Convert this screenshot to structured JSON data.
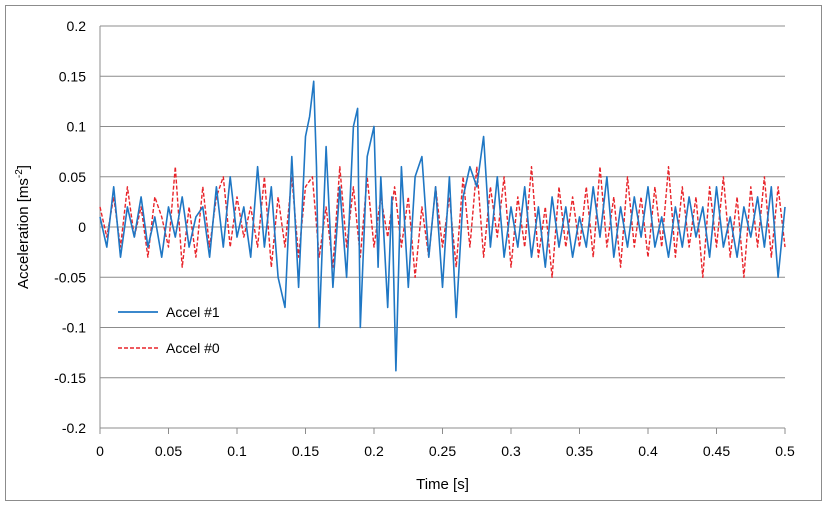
{
  "chart_data": {
    "type": "line",
    "title": "",
    "xlabel": "Time [s]",
    "ylabel_main": "Acceleration [ms",
    "ylabel_sup": "-2",
    "ylabel_close": "]",
    "xlim": [
      0,
      0.5
    ],
    "ylim": [
      -0.2,
      0.2
    ],
    "x_ticks": [
      0,
      0.05,
      0.1,
      0.15,
      0.2,
      0.25,
      0.3,
      0.35,
      0.4,
      0.45,
      0.5
    ],
    "x_tick_labels": [
      "0",
      "0.05",
      "0.1",
      "0.15",
      "0.2",
      "0.25",
      "0.3",
      "0.35",
      "0.4",
      "0.45",
      "0.5"
    ],
    "y_ticks": [
      -0.2,
      -0.15,
      -0.1,
      -0.05,
      0,
      0.05,
      0.1,
      0.15,
      0.2
    ],
    "y_tick_labels": [
      "-0.2",
      "-0.15",
      "-0.1",
      "-0.05",
      "0",
      "0.05",
      "0.1",
      "0.15",
      "0.2"
    ],
    "grid": "horizontal",
    "legend_position": "lower-left",
    "series": [
      {
        "name": "Accel #1",
        "color": "#1f77c4",
        "style": "solid",
        "x": [
          0,
          0.005,
          0.01,
          0.015,
          0.02,
          0.025,
          0.03,
          0.035,
          0.04,
          0.045,
          0.05,
          0.055,
          0.06,
          0.065,
          0.07,
          0.075,
          0.08,
          0.085,
          0.09,
          0.095,
          0.1,
          0.105,
          0.11,
          0.115,
          0.12,
          0.125,
          0.13,
          0.135,
          0.14,
          0.145,
          0.15,
          0.153,
          0.156,
          0.158,
          0.16,
          0.165,
          0.17,
          0.175,
          0.18,
          0.185,
          0.188,
          0.19,
          0.195,
          0.2,
          0.203,
          0.205,
          0.21,
          0.213,
          0.216,
          0.22,
          0.225,
          0.23,
          0.235,
          0.24,
          0.245,
          0.25,
          0.255,
          0.26,
          0.265,
          0.27,
          0.275,
          0.28,
          0.285,
          0.29,
          0.295,
          0.3,
          0.305,
          0.31,
          0.315,
          0.32,
          0.325,
          0.33,
          0.335,
          0.34,
          0.345,
          0.35,
          0.355,
          0.36,
          0.365,
          0.37,
          0.375,
          0.38,
          0.385,
          0.39,
          0.395,
          0.4,
          0.405,
          0.41,
          0.415,
          0.42,
          0.425,
          0.43,
          0.435,
          0.44,
          0.445,
          0.45,
          0.455,
          0.46,
          0.465,
          0.47,
          0.475,
          0.48,
          0.485,
          0.49,
          0.495,
          0.5
        ],
        "y": [
          0.01,
          -0.02,
          0.04,
          -0.03,
          0.02,
          -0.01,
          0.03,
          -0.02,
          0.01,
          -0.03,
          0.02,
          -0.01,
          0.03,
          -0.02,
          0.01,
          0.02,
          -0.03,
          0.04,
          -0.02,
          0.05,
          -0.01,
          0.02,
          -0.03,
          0.06,
          -0.02,
          0.04,
          -0.05,
          -0.08,
          0.07,
          -0.06,
          0.09,
          0.11,
          0.145,
          0.06,
          -0.1,
          0.08,
          -0.06,
          0.04,
          -0.05,
          0.1,
          0.118,
          -0.1,
          0.07,
          0.1,
          -0.04,
          0.05,
          -0.08,
          0.03,
          -0.143,
          0.06,
          -0.06,
          0.05,
          0.07,
          -0.03,
          0.04,
          -0.06,
          0.05,
          -0.09,
          0.03,
          0.06,
          0.04,
          0.09,
          -0.02,
          0.05,
          -0.03,
          0.02,
          -0.02,
          0.04,
          -0.03,
          0.02,
          -0.04,
          0.03,
          -0.02,
          0.02,
          -0.03,
          0.01,
          -0.02,
          0.04,
          -0.01,
          0.05,
          -0.03,
          0.02,
          -0.02,
          0.03,
          -0.01,
          0.04,
          -0.02,
          0.01,
          -0.03,
          0.02,
          -0.02,
          0.03,
          -0.01,
          0.02,
          -0.03,
          0.04,
          -0.02,
          0.01,
          -0.03,
          0.02,
          -0.01,
          0.03,
          -0.02,
          0.04,
          -0.05,
          0.02
        ]
      },
      {
        "name": "Accel #0",
        "color": "#e8242a",
        "style": "dashed",
        "x": [
          0,
          0.005,
          0.01,
          0.015,
          0.02,
          0.025,
          0.03,
          0.035,
          0.04,
          0.045,
          0.05,
          0.055,
          0.06,
          0.065,
          0.07,
          0.075,
          0.08,
          0.085,
          0.09,
          0.095,
          0.1,
          0.105,
          0.11,
          0.115,
          0.12,
          0.125,
          0.13,
          0.135,
          0.14,
          0.145,
          0.15,
          0.155,
          0.16,
          0.165,
          0.17,
          0.175,
          0.18,
          0.185,
          0.19,
          0.195,
          0.2,
          0.205,
          0.21,
          0.215,
          0.22,
          0.225,
          0.23,
          0.235,
          0.24,
          0.245,
          0.25,
          0.255,
          0.26,
          0.265,
          0.27,
          0.275,
          0.28,
          0.285,
          0.29,
          0.295,
          0.3,
          0.305,
          0.31,
          0.315,
          0.32,
          0.325,
          0.33,
          0.335,
          0.34,
          0.345,
          0.35,
          0.355,
          0.36,
          0.365,
          0.37,
          0.375,
          0.38,
          0.385,
          0.39,
          0.395,
          0.4,
          0.405,
          0.41,
          0.415,
          0.42,
          0.425,
          0.43,
          0.435,
          0.44,
          0.445,
          0.45,
          0.455,
          0.46,
          0.465,
          0.47,
          0.475,
          0.48,
          0.485,
          0.49,
          0.495,
          0.5
        ],
        "y": [
          0.02,
          -0.01,
          0.03,
          -0.02,
          0.04,
          -0.01,
          0.02,
          -0.03,
          0.03,
          0.01,
          -0.02,
          0.06,
          -0.04,
          0.02,
          -0.03,
          0.04,
          -0.02,
          0.03,
          0.05,
          -0.02,
          0.03,
          -0.01,
          0.02,
          -0.02,
          0.05,
          -0.04,
          0.03,
          -0.02,
          0.05,
          -0.03,
          0.04,
          0.05,
          -0.03,
          0.02,
          -0.04,
          0.06,
          -0.02,
          0.04,
          -0.03,
          0.05,
          -0.02,
          0.03,
          -0.01,
          0.04,
          -0.02,
          0.03,
          -0.05,
          0.02,
          -0.03,
          0.04,
          -0.02,
          0.03,
          -0.04,
          0.05,
          -0.02,
          0.06,
          -0.03,
          0.04,
          -0.01,
          0.05,
          -0.04,
          0.03,
          -0.02,
          0.06,
          -0.03,
          0.02,
          -0.05,
          0.04,
          -0.02,
          0.03,
          -0.02,
          0.04,
          -0.03,
          0.06,
          -0.02,
          0.03,
          -0.04,
          0.05,
          -0.02,
          0.03,
          -0.03,
          0.04,
          -0.02,
          0.06,
          -0.03,
          0.04,
          -0.02,
          0.03,
          -0.05,
          0.04,
          -0.02,
          0.05,
          -0.03,
          0.03,
          -0.05,
          0.04,
          -0.02,
          0.05,
          -0.03,
          0.04,
          -0.02
        ]
      }
    ]
  }
}
